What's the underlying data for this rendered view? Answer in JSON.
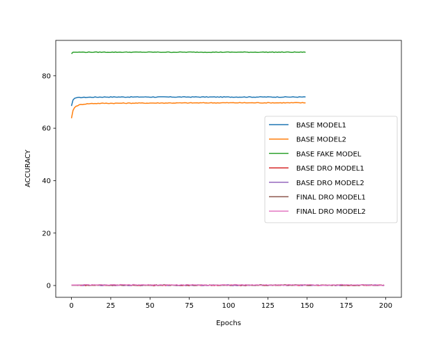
{
  "chart_data": {
    "type": "line",
    "xlabel": "Epochs",
    "ylabel": "ACCURACY",
    "xlim": [
      -10,
      210
    ],
    "ylim": [
      -4.5,
      93.5
    ],
    "xticks": [
      0,
      25,
      50,
      75,
      100,
      125,
      150,
      175,
      200
    ],
    "yticks": [
      0,
      20,
      40,
      60,
      80
    ],
    "grid": false,
    "legend_position": "center-right",
    "series": [
      {
        "name": "BASE MODEL1",
        "color": "#1f77b4",
        "x_end": 149,
        "points": [
          [
            0,
            68.5
          ],
          [
            1,
            70.8
          ],
          [
            2,
            71.4
          ],
          [
            3,
            71.6
          ],
          [
            5,
            71.7
          ],
          [
            10,
            71.8
          ],
          [
            20,
            71.9
          ],
          [
            50,
            71.9
          ],
          [
            100,
            71.9
          ],
          [
            149,
            71.9
          ]
        ]
      },
      {
        "name": "BASE MODEL2",
        "color": "#ff7f0e",
        "x_end": 149,
        "points": [
          [
            0,
            63.8
          ],
          [
            1,
            66.8
          ],
          [
            2,
            67.9
          ],
          [
            3,
            68.4
          ],
          [
            5,
            68.9
          ],
          [
            8,
            69.2
          ],
          [
            12,
            69.4
          ],
          [
            20,
            69.5
          ],
          [
            50,
            69.6
          ],
          [
            100,
            69.7
          ],
          [
            149,
            69.7
          ]
        ]
      },
      {
        "name": "BASE FAKE MODEL",
        "color": "#2ca02c",
        "x_end": 149,
        "points": [
          [
            0,
            88.4
          ],
          [
            1,
            89.0
          ],
          [
            3,
            89.0
          ],
          [
            149,
            89.0
          ]
        ]
      },
      {
        "name": "BASE DRO MODEL1",
        "color": "#d62728",
        "x_end": 199,
        "points": [
          [
            0,
            0.1
          ],
          [
            199,
            0.1
          ]
        ]
      },
      {
        "name": "BASE DRO MODEL2",
        "color": "#9467bd",
        "x_end": 199,
        "points": [
          [
            0,
            0.1
          ],
          [
            199,
            0.1
          ]
        ]
      },
      {
        "name": "FINAL DRO MODEL1",
        "color": "#8c564b",
        "x_end": 199,
        "points": [
          [
            0,
            0.15
          ],
          [
            199,
            0.15
          ]
        ]
      },
      {
        "name": "FINAL DRO MODEL2",
        "color": "#e377c2",
        "x_end": 199,
        "points": [
          [
            0,
            0.2
          ],
          [
            199,
            0.2
          ]
        ]
      }
    ]
  }
}
